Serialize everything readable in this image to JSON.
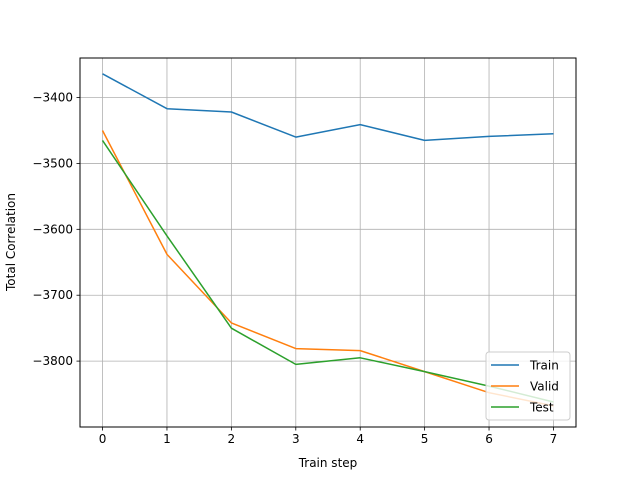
{
  "chart_data": {
    "type": "line",
    "title": "",
    "xlabel": "Train step",
    "ylabel": "Total Correlation",
    "x": [
      0,
      1,
      2,
      3,
      4,
      5,
      6,
      7
    ],
    "xlim": [
      -0.35,
      7.35
    ],
    "ylim": [
      -3900,
      -3340
    ],
    "xticks": [
      "0",
      "1",
      "2",
      "3",
      "4",
      "5",
      "6",
      "7"
    ],
    "yticks": [
      -3400,
      -3500,
      -3600,
      -3700,
      -3800
    ],
    "ytick_labels": [
      "−3400",
      "−3500",
      "−3600",
      "−3700",
      "−3800"
    ],
    "grid": true,
    "legend_position": "lower-right",
    "series": [
      {
        "name": "Train",
        "color": "#1f77b4",
        "values": [
          -3364,
          -3417,
          -3422,
          -3460,
          -3441,
          -3465,
          -3459,
          -3455
        ]
      },
      {
        "name": "Valid",
        "color": "#ff7f0e",
        "values": [
          -3450,
          -3638,
          -3742,
          -3781,
          -3784,
          -3816,
          -3848,
          -3868
        ]
      },
      {
        "name": "Test",
        "color": "#2ca02c",
        "values": [
          -3465,
          -3610,
          -3750,
          -3805,
          -3795,
          -3816,
          -3838,
          -3862
        ]
      }
    ]
  }
}
